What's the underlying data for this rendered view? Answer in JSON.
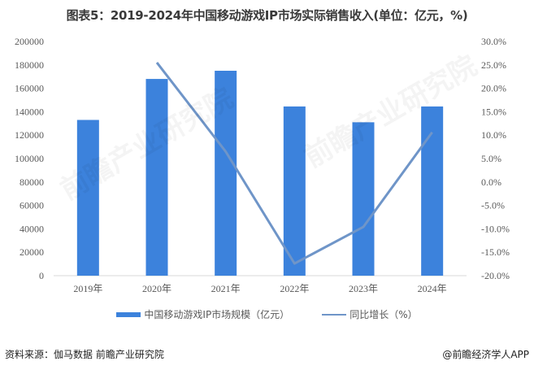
{
  "title": "图表5：2019-2024年中国移动游戏IP市场实际销售收入(单位：亿元，%)",
  "legend": {
    "bar_label": "中国移动游戏IP市场规模（亿元）",
    "line_label": "同比增长（%）"
  },
  "footer": {
    "source": "资料来源：伽马数据 前瞻产业研究院",
    "credit": "@前瞻经济学人APP"
  },
  "watermark": "前瞻产业研究院",
  "colors": {
    "bar": "#3c82dc",
    "line": "#6f95c8",
    "axis": "#d9d9d9"
  },
  "chart_data": {
    "type": "bar+line",
    "title": "图表5：2019-2024年中国移动游戏IP市场实际销售收入(单位：亿元，%)",
    "categories": [
      "2019年",
      "2020年",
      "2021年",
      "2022年",
      "2023年",
      "2024年"
    ],
    "series": [
      {
        "name": "中国移动游戏IP市场规模（亿元）",
        "type": "bar",
        "axis": "left",
        "values": [
          133000,
          168000,
          175000,
          144500,
          131000,
          144500
        ]
      },
      {
        "name": "同比增长（%）",
        "type": "line",
        "axis": "right",
        "values": [
          null,
          25.5,
          6.5,
          -17.4,
          -9.6,
          10.6
        ]
      }
    ],
    "left_axis": {
      "ylim": [
        0,
        200000
      ],
      "ticks": [
        "200000",
        "180000",
        "160000",
        "140000",
        "120000",
        "100000",
        "80000",
        "60000",
        "40000",
        "20000",
        "0"
      ]
    },
    "right_axis": {
      "ylim": [
        -20,
        30
      ],
      "ticks": [
        "30.0%",
        "25.0%",
        "20.0%",
        "15.0%",
        "10.0%",
        "5.0%",
        "0.0%",
        "-5.0%",
        "-10.0%",
        "-15.0%",
        "-20.0%"
      ]
    },
    "xlabel": "",
    "ylabel": "",
    "grid": false,
    "legend_position": "bottom"
  }
}
